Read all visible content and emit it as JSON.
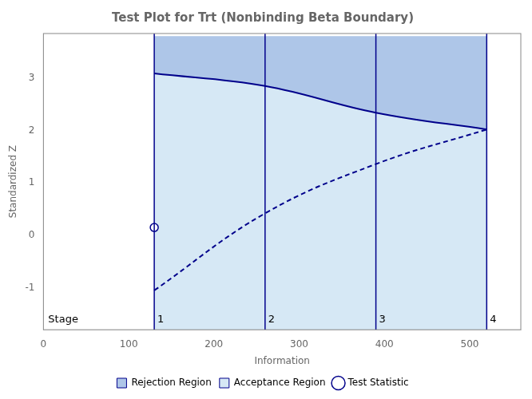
{
  "chart_data": {
    "type": "line",
    "title": "Test Plot for Trt (Nonbinding Beta Boundary)",
    "xlabel": "Information",
    "ylabel": "Standardized Z",
    "xlim": [
      0,
      560
    ],
    "ylim": [
      -1.8,
      3.85
    ],
    "xticks": [
      0,
      100,
      200,
      300,
      400,
      500
    ],
    "yticks": [
      -1,
      0,
      1,
      2,
      3
    ],
    "grid": false,
    "legend": "bottom",
    "x": [
      130,
      260,
      390,
      520
    ],
    "boundaries": [
      {
        "values": [
          3.09,
          2.85,
          2.34,
          2.02
        ],
        "line_style": "solid",
        "color": "#00008B"
      },
      {
        "values": [
          -1.05,
          0.42,
          1.36,
          2.02
        ],
        "line_style": "dashed",
        "color": "#00008B"
      }
    ],
    "rejection_top": 3.8,
    "regions": [
      {
        "name": "Rejection Region",
        "color": "#aec6e8"
      },
      {
        "name": "Acceptance Region",
        "color": "#d6e8f5"
      }
    ],
    "stage_label": "Stage",
    "stage_x": [
      130,
      260,
      390,
      520
    ],
    "stage_names": [
      "1",
      "2",
      "3",
      "4"
    ],
    "test_statistic": {
      "name": "Test Statistic",
      "x": 130,
      "y": 0.15,
      "marker": "circle",
      "color": "#00008B"
    }
  }
}
